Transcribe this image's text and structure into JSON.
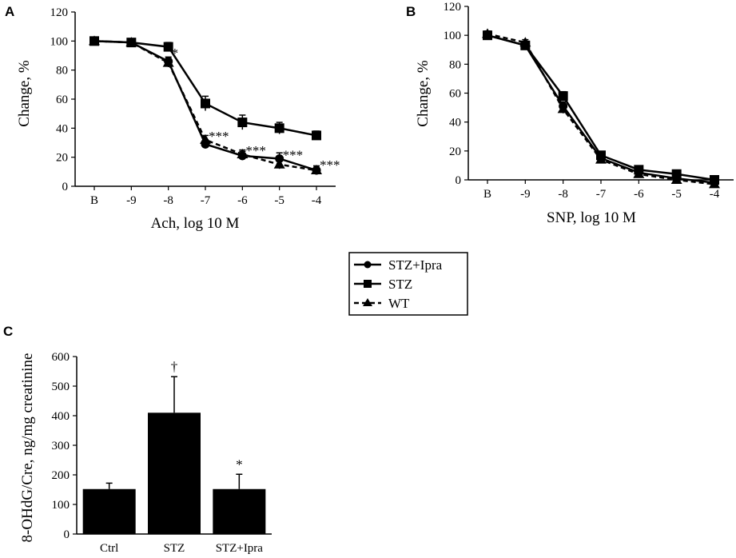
{
  "panels": {
    "a": "A",
    "b": "B",
    "c": "C"
  },
  "legend": [
    {
      "label": "STZ+Ipra",
      "marker": "circle",
      "dash": "solid"
    },
    {
      "label": "STZ",
      "marker": "square",
      "dash": "solid"
    },
    {
      "label": "WT",
      "marker": "triangle",
      "dash": "dashed"
    }
  ],
  "chart_data": [
    {
      "id": "A",
      "type": "line",
      "categories": [
        "B",
        "-9",
        "-8",
        "-7",
        "-6",
        "-5",
        "-4"
      ],
      "xlabel": "Ach, log 10 M",
      "ylabel": "Change, %",
      "ylim": [
        0,
        120
      ],
      "yticks": [
        0,
        20,
        40,
        60,
        80,
        100,
        120
      ],
      "series": [
        {
          "name": "STZ+Ipra",
          "marker": "circle",
          "dash": "solid",
          "values": [
            100,
            99,
            86,
            29,
            21,
            19,
            11
          ],
          "errors": [
            2,
            2,
            3,
            3,
            3,
            4,
            3
          ]
        },
        {
          "name": "STZ",
          "marker": "square",
          "dash": "solid",
          "values": [
            100,
            99,
            96,
            57,
            44,
            40,
            35
          ],
          "errors": [
            2,
            2,
            3,
            5,
            5,
            4,
            3
          ]
        },
        {
          "name": "WT",
          "marker": "triangle",
          "dash": "dashed",
          "values": [
            100,
            99,
            85,
            32,
            22,
            15,
            11
          ],
          "errors": [
            2,
            2,
            3,
            3,
            3,
            3,
            3
          ]
        }
      ],
      "annotations": [
        {
          "category": "-8",
          "value": 94,
          "text": "*"
        },
        {
          "category": "-7",
          "value": 37,
          "text": "***"
        },
        {
          "category": "-6",
          "value": 27,
          "text": "***"
        },
        {
          "category": "-5",
          "value": 24,
          "text": "***"
        },
        {
          "category": "-4",
          "value": 17,
          "text": "***"
        }
      ]
    },
    {
      "id": "B",
      "type": "line",
      "categories": [
        "B",
        "-9",
        "-8",
        "-7",
        "-6",
        "-5",
        "-4"
      ],
      "xlabel": "SNP, log 10 M",
      "ylabel": "Change, %",
      "ylim": [
        0,
        120
      ],
      "yticks": [
        0,
        20,
        40,
        60,
        80,
        100,
        120
      ],
      "series": [
        {
          "name": "STZ+Ipra",
          "marker": "circle",
          "dash": "solid",
          "values": [
            100,
            93,
            51,
            15,
            5,
            1,
            -2
          ],
          "errors": [
            2,
            2,
            3,
            2,
            2,
            2,
            2
          ]
        },
        {
          "name": "STZ",
          "marker": "square",
          "dash": "solid",
          "values": [
            100,
            93,
            58,
            17,
            7,
            4,
            0
          ],
          "errors": [
            2,
            2,
            3,
            2,
            2,
            2,
            2
          ]
        },
        {
          "name": "WT",
          "marker": "triangle",
          "dash": "dashed",
          "values": [
            101,
            95,
            49,
            14,
            4,
            0,
            -3
          ],
          "errors": [
            2,
            2,
            3,
            2,
            2,
            2,
            2
          ]
        }
      ]
    },
    {
      "id": "C",
      "type": "bar",
      "categories": [
        "Ctrl",
        "STZ",
        "STZ+Ipra"
      ],
      "values": [
        152,
        410,
        152
      ],
      "errors": [
        20,
        122,
        50
      ],
      "ylabel": "8-OHdG/Cre, ng/mg creatinine",
      "ylim": [
        0,
        600
      ],
      "yticks": [
        0,
        100,
        200,
        300,
        400,
        500,
        600
      ],
      "annotations": [
        {
          "category": "STZ",
          "text": "†"
        },
        {
          "category": "STZ+Ipra",
          "text": "*"
        }
      ]
    }
  ]
}
